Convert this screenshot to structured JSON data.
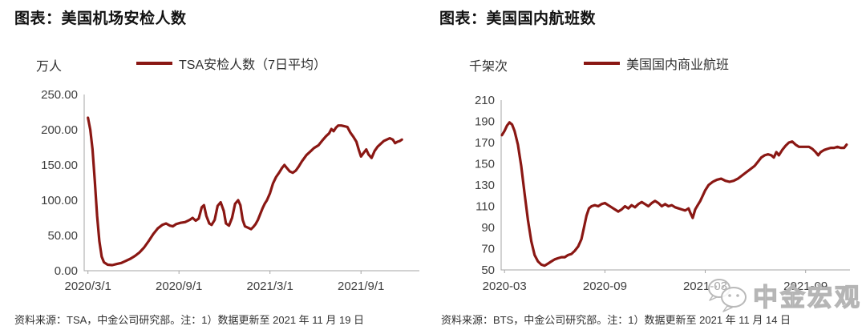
{
  "accent_color": "#8a1713",
  "axis_color": "#a6a6a6",
  "watermark": {
    "text": "中金宏观",
    "icon": "wechat-icon"
  },
  "panels": [
    {
      "title": "图表：美国机场安检人数",
      "unit_label": "万人",
      "legend_label": "TSA安检人数（7日平均）",
      "source_note": "资料来源：TSA，中金公司研究部。注：1）数据更新至 2021 年 11 月 19 日"
    },
    {
      "title": "图表：美国国内航班数",
      "unit_label": "千架次",
      "legend_label": "美国国内商业航班",
      "source_note": "资料来源：BTS，中金公司研究部。注：1）数据更新至 2021 年 11 月 14 日"
    }
  ],
  "chart_data": [
    {
      "type": "line",
      "title": "美国机场安检人数",
      "ylabel": "万人",
      "xlabel": "",
      "grid": false,
      "legend_position": "top",
      "x_axis": {
        "months_from": "2020-03",
        "tick_labels": [
          "2020/3/1",
          "2020/9/1",
          "2021/3/1",
          "2021/9/1"
        ],
        "tick_months": [
          0,
          6,
          12,
          18
        ],
        "range_months": [
          -0.25,
          21.85
        ]
      },
      "y_axis": {
        "tick_labels": [
          "250.00",
          "200.00",
          "150.00",
          "100.00",
          "50.00",
          "0.00"
        ],
        "tick_values": [
          250,
          200,
          150,
          100,
          50,
          0
        ],
        "range": [
          0,
          250
        ]
      },
      "series": [
        {
          "name": "TSA安检人数（7日平均）",
          "color": "#8a1713",
          "points": [
            [
              0,
              217
            ],
            [
              0.15,
              200
            ],
            [
              0.3,
              172
            ],
            [
              0.45,
              128
            ],
            [
              0.6,
              78
            ],
            [
              0.75,
              42
            ],
            [
              0.9,
              20
            ],
            [
              1.05,
              12
            ],
            [
              1.3,
              8.5
            ],
            [
              1.6,
              8
            ],
            [
              1.9,
              9.5
            ],
            [
              2.2,
              11
            ],
            [
              2.5,
              14
            ],
            [
              2.8,
              17
            ],
            [
              3.1,
              21
            ],
            [
              3.4,
              26
            ],
            [
              3.7,
              33
            ],
            [
              4.0,
              42
            ],
            [
              4.3,
              52
            ],
            [
              4.6,
              60
            ],
            [
              4.9,
              65
            ],
            [
              5.15,
              67
            ],
            [
              5.4,
              64
            ],
            [
              5.6,
              63
            ],
            [
              5.8,
              66
            ],
            [
              6.1,
              68
            ],
            [
              6.4,
              69
            ],
            [
              6.7,
              72
            ],
            [
              6.9,
              75
            ],
            [
              7.1,
              71
            ],
            [
              7.3,
              74
            ],
            [
              7.5,
              90
            ],
            [
              7.65,
              93
            ],
            [
              7.8,
              78
            ],
            [
              8.0,
              67
            ],
            [
              8.15,
              65
            ],
            [
              8.35,
              72
            ],
            [
              8.55,
              92
            ],
            [
              8.75,
              97
            ],
            [
              8.95,
              85
            ],
            [
              9.1,
              67
            ],
            [
              9.3,
              64
            ],
            [
              9.5,
              75
            ],
            [
              9.7,
              95
            ],
            [
              9.9,
              100
            ],
            [
              10.05,
              93
            ],
            [
              10.2,
              72
            ],
            [
              10.35,
              63
            ],
            [
              10.55,
              61
            ],
            [
              10.75,
              59
            ],
            [
              10.9,
              62
            ],
            [
              11.05,
              66
            ],
            [
              11.2,
              72
            ],
            [
              11.35,
              80
            ],
            [
              11.5,
              88
            ],
            [
              11.65,
              95
            ],
            [
              11.8,
              100
            ],
            [
              12.0,
              110
            ],
            [
              12.2,
              124
            ],
            [
              12.4,
              133
            ],
            [
              12.6,
              139
            ],
            [
              12.8,
              146
            ],
            [
              12.95,
              150
            ],
            [
              13.1,
              146
            ],
            [
              13.3,
              141
            ],
            [
              13.5,
              139
            ],
            [
              13.7,
              142
            ],
            [
              13.9,
              148
            ],
            [
              14.1,
              155
            ],
            [
              14.4,
              164
            ],
            [
              14.7,
              170
            ],
            [
              14.9,
              174
            ],
            [
              15.2,
              178
            ],
            [
              15.5,
              186
            ],
            [
              15.7,
              191
            ],
            [
              15.9,
              195
            ],
            [
              16.05,
              201
            ],
            [
              16.2,
              198
            ],
            [
              16.35,
              203
            ],
            [
              16.5,
              206
            ],
            [
              16.7,
              206
            ],
            [
              16.9,
              205
            ],
            [
              17.1,
              204
            ],
            [
              17.3,
              196
            ],
            [
              17.5,
              190
            ],
            [
              17.7,
              183
            ],
            [
              17.85,
              172
            ],
            [
              18.0,
              162
            ],
            [
              18.2,
              168
            ],
            [
              18.35,
              172
            ],
            [
              18.5,
              165
            ],
            [
              18.7,
              160
            ],
            [
              18.9,
              170
            ],
            [
              19.1,
              176
            ],
            [
              19.3,
              180
            ],
            [
              19.5,
              184
            ],
            [
              19.7,
              186
            ],
            [
              19.9,
              188
            ],
            [
              20.1,
              186
            ],
            [
              20.25,
              181
            ],
            [
              20.4,
              183
            ],
            [
              20.55,
              184
            ],
            [
              20.7,
              186
            ]
          ]
        }
      ]
    },
    {
      "type": "line",
      "title": "美国国内航班数",
      "ylabel": "千架次",
      "xlabel": "",
      "grid": false,
      "legend_position": "top",
      "x_axis": {
        "months_from": "2020-03",
        "tick_labels": [
          "2020-03",
          "2020-09",
          "2021-03",
          "2021-09"
        ],
        "tick_months": [
          0,
          6,
          12,
          18
        ],
        "range_months": [
          -0.2,
          20.65
        ]
      },
      "y_axis": {
        "tick_labels": [
          "210",
          "190",
          "170",
          "150",
          "130",
          "110",
          "90",
          "70",
          "50"
        ],
        "tick_values": [
          210,
          190,
          170,
          150,
          130,
          110,
          90,
          70,
          50
        ],
        "range": [
          50,
          210
        ]
      },
      "series": [
        {
          "name": "美国国内商业航班",
          "color": "#8a1713",
          "points": [
            [
              -0.15,
              177
            ],
            [
              0.0,
              181
            ],
            [
              0.15,
              186
            ],
            [
              0.3,
              189
            ],
            [
              0.45,
              187
            ],
            [
              0.6,
              181
            ],
            [
              0.8,
              168
            ],
            [
              1.0,
              148
            ],
            [
              1.2,
              122
            ],
            [
              1.4,
              97
            ],
            [
              1.6,
              77
            ],
            [
              1.8,
              64
            ],
            [
              2.0,
              58
            ],
            [
              2.2,
              55
            ],
            [
              2.4,
              54
            ],
            [
              2.6,
              56
            ],
            [
              2.8,
              58
            ],
            [
              3.0,
              60
            ],
            [
              3.2,
              61
            ],
            [
              3.4,
              62
            ],
            [
              3.6,
              62
            ],
            [
              3.8,
              64
            ],
            [
              4.0,
              65
            ],
            [
              4.2,
              68
            ],
            [
              4.4,
              72
            ],
            [
              4.6,
              79
            ],
            [
              4.75,
              90
            ],
            [
              4.9,
              101
            ],
            [
              5.05,
              108
            ],
            [
              5.2,
              110
            ],
            [
              5.4,
              111
            ],
            [
              5.6,
              110
            ],
            [
              5.8,
              112
            ],
            [
              6.0,
              113
            ],
            [
              6.2,
              111
            ],
            [
              6.4,
              109
            ],
            [
              6.6,
              107
            ],
            [
              6.8,
              105
            ],
            [
              7.0,
              107
            ],
            [
              7.2,
              110
            ],
            [
              7.4,
              108
            ],
            [
              7.6,
              111
            ],
            [
              7.8,
              109
            ],
            [
              8.0,
              112
            ],
            [
              8.2,
              114
            ],
            [
              8.4,
              112
            ],
            [
              8.6,
              110
            ],
            [
              8.8,
              113
            ],
            [
              9.0,
              115
            ],
            [
              9.2,
              113
            ],
            [
              9.4,
              110
            ],
            [
              9.6,
              112
            ],
            [
              9.8,
              110
            ],
            [
              10.0,
              111
            ],
            [
              10.2,
              109
            ],
            [
              10.4,
              108
            ],
            [
              10.6,
              107
            ],
            [
              10.8,
              106
            ],
            [
              11.0,
              108
            ],
            [
              11.1,
              104
            ],
            [
              11.25,
              99
            ],
            [
              11.4,
              107
            ],
            [
              11.55,
              111
            ],
            [
              11.7,
              115
            ],
            [
              11.85,
              120
            ],
            [
              12.0,
              125
            ],
            [
              12.2,
              130
            ],
            [
              12.45,
              133
            ],
            [
              12.7,
              135
            ],
            [
              12.95,
              136
            ],
            [
              13.2,
              134
            ],
            [
              13.45,
              133
            ],
            [
              13.7,
              134
            ],
            [
              13.95,
              136
            ],
            [
              14.2,
              139
            ],
            [
              14.45,
              142
            ],
            [
              14.7,
              145
            ],
            [
              14.95,
              148
            ],
            [
              15.15,
              152
            ],
            [
              15.35,
              156
            ],
            [
              15.55,
              158
            ],
            [
              15.75,
              159
            ],
            [
              15.95,
              158
            ],
            [
              16.1,
              156
            ],
            [
              16.25,
              161
            ],
            [
              16.4,
              158
            ],
            [
              16.6,
              163
            ],
            [
              16.8,
              167
            ],
            [
              17.0,
              170
            ],
            [
              17.2,
              171
            ],
            [
              17.4,
              168
            ],
            [
              17.6,
              166
            ],
            [
              17.8,
              166
            ],
            [
              18.0,
              166
            ],
            [
              18.2,
              166
            ],
            [
              18.4,
              164
            ],
            [
              18.6,
              161
            ],
            [
              18.75,
              158
            ],
            [
              18.9,
              161
            ],
            [
              19.1,
              163
            ],
            [
              19.3,
              164
            ],
            [
              19.5,
              165
            ],
            [
              19.7,
              165
            ],
            [
              19.9,
              166
            ],
            [
              20.1,
              165
            ],
            [
              20.3,
              165
            ],
            [
              20.45,
              168
            ]
          ]
        }
      ]
    }
  ]
}
